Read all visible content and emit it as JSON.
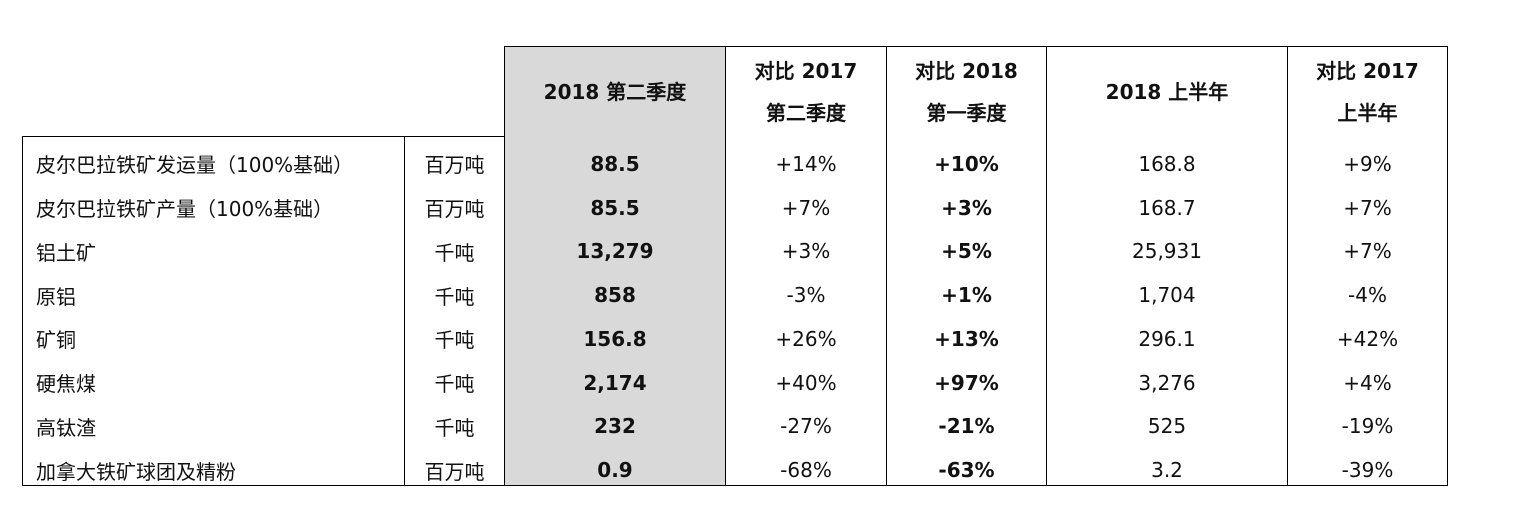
{
  "headers": {
    "q2_2018": "2018 第二季度",
    "vs_q2_2017": [
      "对比 2017",
      "第二季度"
    ],
    "vs_q1_2018": [
      "对比 2018",
      "第一季度"
    ],
    "h1_2018": "2018 上半年",
    "vs_h1_2017": [
      "对比 2017",
      "上半年"
    ]
  },
  "rows": [
    {
      "name": "皮尔巴拉铁矿发运量（100%基础）",
      "unit": "百万吨",
      "q2_2018": "88.5",
      "vs_q2_2017": "+14%",
      "vs_q1_2018": "+10%",
      "h1_2018": "168.8",
      "vs_h1_2017": "+9%"
    },
    {
      "name": "皮尔巴拉铁矿产量（100%基础）",
      "unit": "百万吨",
      "q2_2018": "85.5",
      "vs_q2_2017": "+7%",
      "vs_q1_2018": "+3%",
      "h1_2018": "168.7",
      "vs_h1_2017": "+7%"
    },
    {
      "name": "铝土矿",
      "unit": "千吨",
      "q2_2018": "13,279",
      "vs_q2_2017": "+3%",
      "vs_q1_2018": "+5%",
      "h1_2018": "25,931",
      "vs_h1_2017": "+7%"
    },
    {
      "name": "原铝",
      "unit": "千吨",
      "q2_2018": "858",
      "vs_q2_2017": "-3%",
      "vs_q1_2018": "+1%",
      "h1_2018": "1,704",
      "vs_h1_2017": "-4%"
    },
    {
      "name": "矿铜",
      "unit": "千吨",
      "q2_2018": "156.8",
      "vs_q2_2017": "+26%",
      "vs_q1_2018": "+13%",
      "h1_2018": "296.1",
      "vs_h1_2017": "+42%"
    },
    {
      "name": "硬焦煤",
      "unit": "千吨",
      "q2_2018": "2,174",
      "vs_q2_2017": "+40%",
      "vs_q1_2018": "+97%",
      "h1_2018": "3,276",
      "vs_h1_2017": "+4%"
    },
    {
      "name": "高钛渣",
      "unit": "千吨",
      "q2_2018": "232",
      "vs_q2_2017": "-27%",
      "vs_q1_2018": "-21%",
      "h1_2018": "525",
      "vs_h1_2017": "-19%"
    },
    {
      "name": "加拿大铁矿球团及精粉",
      "unit": "百万吨",
      "q2_2018": "0.9",
      "vs_q2_2017": "-68%",
      "vs_q1_2018": "-63%",
      "h1_2018": "3.2",
      "vs_h1_2017": "-39%"
    }
  ]
}
